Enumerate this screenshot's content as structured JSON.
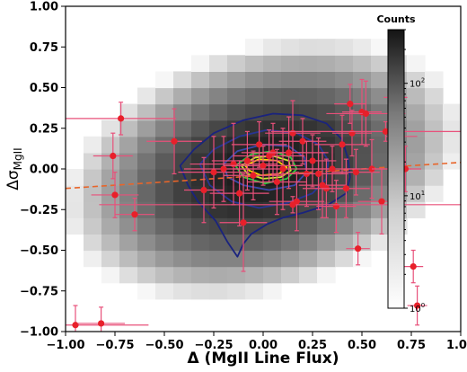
{
  "chart_data": {
    "type": "heatmap",
    "title": "",
    "xlabel_prefix": "Δ (",
    "xlabel_main": "MgII Line Flux",
    "xlabel_suffix": ")",
    "ylabel_main": "Δσ",
    "ylabel_sub": "MgII",
    "xlim": [
      -1.0,
      1.0
    ],
    "ylim": [
      -1.0,
      1.0
    ],
    "x_ticks": [
      "−1.00",
      "−0.75",
      "−0.50",
      "−0.25",
      "0.00",
      "0.25",
      "0.50",
      "0.75",
      "1.00"
    ],
    "y_ticks": [
      "1.00",
      "0.75",
      "0.50",
      "0.25",
      "0.00",
      "−0.25",
      "−0.50",
      "−0.75",
      "−1.00"
    ],
    "grid": false,
    "colorbar": {
      "title": "Counts",
      "scale": "log",
      "range": [
        1,
        300
      ],
      "ticks": [
        {
          "base": "10",
          "exp": "0"
        },
        {
          "base": "10",
          "exp": "1"
        },
        {
          "base": "10",
          "exp": "2"
        }
      ],
      "position": "inside-top-right"
    },
    "density": {
      "center": [
        0.0,
        0.0
      ],
      "sigma_x": 0.3,
      "sigma_y": 0.24,
      "rho": 0.28,
      "peak_counts": 260
    },
    "contours": [
      {
        "color": "#1a237e",
        "points": [
          [
            -0.42,
            0.02
          ],
          [
            -0.35,
            0.12
          ],
          [
            -0.25,
            0.22
          ],
          [
            -0.1,
            0.3
          ],
          [
            0.05,
            0.34
          ],
          [
            0.2,
            0.33
          ],
          [
            0.32,
            0.28
          ],
          [
            0.4,
            0.18
          ],
          [
            0.43,
            0.06
          ],
          [
            0.44,
            -0.05
          ],
          [
            0.42,
            -0.15
          ],
          [
            0.33,
            -0.22
          ],
          [
            0.2,
            -0.27
          ],
          [
            0.1,
            -0.3
          ],
          [
            0.02,
            -0.34
          ],
          [
            -0.06,
            -0.4
          ],
          [
            -0.1,
            -0.46
          ],
          [
            -0.13,
            -0.54
          ],
          [
            -0.18,
            -0.45
          ],
          [
            -0.24,
            -0.32
          ],
          [
            -0.33,
            -0.2
          ],
          [
            -0.38,
            -0.1
          ]
        ]
      },
      {
        "color": "#283593",
        "points": [
          [
            -0.32,
            0.03
          ],
          [
            -0.25,
            0.12
          ],
          [
            -0.12,
            0.2
          ],
          [
            0.02,
            0.24
          ],
          [
            0.17,
            0.22
          ],
          [
            0.28,
            0.15
          ],
          [
            0.33,
            0.05
          ],
          [
            0.32,
            -0.06
          ],
          [
            0.25,
            -0.15
          ],
          [
            0.12,
            -0.21
          ],
          [
            -0.02,
            -0.24
          ],
          [
            -0.16,
            -0.2
          ],
          [
            -0.27,
            -0.1
          ]
        ]
      },
      {
        "color": "#3949ab",
        "points": [
          [
            -0.2,
            0.03
          ],
          [
            -0.13,
            0.11
          ],
          [
            0.0,
            0.15
          ],
          [
            0.13,
            0.14
          ],
          [
            0.21,
            0.07
          ],
          [
            0.22,
            -0.02
          ],
          [
            0.16,
            -0.1
          ],
          [
            0.03,
            -0.13
          ],
          [
            -0.1,
            -0.1
          ],
          [
            -0.18,
            -0.05
          ]
        ]
      },
      {
        "color": "#2ecc40",
        "points": [
          [
            -0.14,
            0.02
          ],
          [
            -0.06,
            0.09
          ],
          [
            0.05,
            0.11
          ],
          [
            0.14,
            0.07
          ],
          [
            0.17,
            0.0
          ],
          [
            0.12,
            -0.06
          ],
          [
            0.01,
            -0.09
          ],
          [
            -0.1,
            -0.05
          ]
        ]
      },
      {
        "color": "#c8e632",
        "points": [
          [
            -0.11,
            0.02
          ],
          [
            -0.04,
            0.07
          ],
          [
            0.05,
            0.08
          ],
          [
            0.13,
            0.05
          ],
          [
            0.14,
            -0.01
          ],
          [
            0.09,
            -0.05
          ],
          [
            0.0,
            -0.06
          ],
          [
            -0.08,
            -0.03
          ]
        ]
      },
      {
        "color": "#ffd400",
        "points": [
          [
            -0.09,
            0.02
          ],
          [
            -0.02,
            0.06
          ],
          [
            0.07,
            0.05
          ],
          [
            0.12,
            0.01
          ],
          [
            0.08,
            -0.03
          ],
          [
            -0.01,
            -0.04
          ],
          [
            -0.07,
            -0.01
          ]
        ]
      }
    ],
    "fit_line": {
      "color": "#e8652a",
      "style": "dashed",
      "x": [
        -1.0,
        1.0
      ],
      "y": [
        -0.12,
        0.04
      ]
    },
    "scatter": {
      "color": "#e8202a",
      "error_color": "#e8507a",
      "points": [
        {
          "x": -0.95,
          "y": -0.96,
          "xerr": 0.37,
          "yerr": 0.12
        },
        {
          "x": -0.82,
          "y": -0.95,
          "xerr": 0.12,
          "yerr": 0.1
        },
        {
          "x": -0.72,
          "y": 0.31,
          "xerr": 0.28,
          "yerr": 0.1
        },
        {
          "x": -0.76,
          "y": 0.08,
          "xerr": 0.1,
          "yerr": 0.14
        },
        {
          "x": -0.75,
          "y": -0.16,
          "xerr": 0.12,
          "yerr": 0.14
        },
        {
          "x": -0.65,
          "y": -0.28,
          "xerr": 0.1,
          "yerr": 0.1
        },
        {
          "x": -0.45,
          "y": 0.17,
          "xerr": 0.14,
          "yerr": 0.2
        },
        {
          "x": -0.3,
          "y": -0.13,
          "xerr": 0.1,
          "yerr": 0.2
        },
        {
          "x": -0.25,
          "y": -0.02,
          "xerr": 0.18,
          "yerr": 0.22
        },
        {
          "x": -0.2,
          "y": 0.0,
          "xerr": 0.2,
          "yerr": 0.2
        },
        {
          "x": -0.15,
          "y": 0.03,
          "xerr": 0.22,
          "yerr": 0.25
        },
        {
          "x": -0.12,
          "y": -0.15,
          "xerr": 0.15,
          "yerr": 0.2
        },
        {
          "x": -0.1,
          "y": -0.33,
          "xerr": 0.12,
          "yerr": 0.3
        },
        {
          "x": -0.08,
          "y": 0.05,
          "xerr": 0.18,
          "yerr": 0.18
        },
        {
          "x": -0.05,
          "y": -0.04,
          "xerr": 0.15,
          "yerr": 0.15
        },
        {
          "x": -0.02,
          "y": 0.15,
          "xerr": 0.14,
          "yerr": 0.14
        },
        {
          "x": 0.0,
          "y": 0.02,
          "xerr": 0.2,
          "yerr": 0.12
        },
        {
          "x": 0.03,
          "y": 0.08,
          "xerr": 0.18,
          "yerr": 0.16
        },
        {
          "x": 0.05,
          "y": 0.1,
          "xerr": 0.16,
          "yerr": 0.18
        },
        {
          "x": 0.07,
          "y": -0.08,
          "xerr": 0.15,
          "yerr": 0.2
        },
        {
          "x": 0.1,
          "y": 0.0,
          "xerr": 0.25,
          "yerr": 0.25
        },
        {
          "x": 0.13,
          "y": 0.1,
          "xerr": 0.2,
          "yerr": 0.22
        },
        {
          "x": 0.15,
          "y": 0.22,
          "xerr": 0.14,
          "yerr": 0.2
        },
        {
          "x": 0.17,
          "y": -0.2,
          "xerr": 0.14,
          "yerr": 0.18
        },
        {
          "x": 0.2,
          "y": 0.17,
          "xerr": 0.12,
          "yerr": 0.14
        },
        {
          "x": 0.22,
          "y": -0.03,
          "xerr": 0.18,
          "yerr": 0.2
        },
        {
          "x": 0.25,
          "y": 0.05,
          "xerr": 0.12,
          "yerr": 0.16
        },
        {
          "x": 0.28,
          "y": -0.03,
          "xerr": 0.15,
          "yerr": 0.22
        },
        {
          "x": 0.3,
          "y": -0.1,
          "xerr": 0.12,
          "yerr": 0.2
        },
        {
          "x": 0.32,
          "y": -0.12,
          "xerr": 0.12,
          "yerr": 0.18
        },
        {
          "x": 0.35,
          "y": 0.0,
          "xerr": 0.14,
          "yerr": 0.14
        },
        {
          "x": 0.37,
          "y": -0.23,
          "xerr": 0.1,
          "yerr": 0.16
        },
        {
          "x": 0.4,
          "y": 0.15,
          "xerr": 0.14,
          "yerr": 0.18
        },
        {
          "x": 0.42,
          "y": -0.12,
          "xerr": 0.12,
          "yerr": 0.18
        },
        {
          "x": 0.44,
          "y": 0.4,
          "xerr": 0.08,
          "yerr": 0.12
        },
        {
          "x": 0.45,
          "y": 0.22,
          "xerr": 0.1,
          "yerr": 0.14
        },
        {
          "x": 0.47,
          "y": -0.02,
          "xerr": 0.12,
          "yerr": 0.14
        },
        {
          "x": 0.5,
          "y": 0.35,
          "xerr": 0.1,
          "yerr": 0.2
        },
        {
          "x": 0.52,
          "y": 0.34,
          "xerr": 0.2,
          "yerr": 0.2
        },
        {
          "x": 0.55,
          "y": 0.0,
          "xerr": 0.14,
          "yerr": 0.18
        },
        {
          "x": 0.48,
          "y": -0.49,
          "xerr": 0.06,
          "yerr": 0.1
        },
        {
          "x": 0.6,
          "y": -0.2,
          "xerr": 0.12,
          "yerr": 0.2
        },
        {
          "x": 0.65,
          "y": 0.0,
          "xerr": 0.1,
          "yerr": 0.12
        },
        {
          "x": 0.67,
          "y": 0.44,
          "xerr": 0.06,
          "yerr": 0.16
        },
        {
          "x": 0.7,
          "y": 0.2,
          "xerr": 0.08,
          "yerr": 0.14
        },
        {
          "x": 0.72,
          "y": 0.0,
          "xerr": 0.08,
          "yerr": 0.14
        },
        {
          "x": 0.76,
          "y": -0.6,
          "xerr": 0.05,
          "yerr": 0.1
        },
        {
          "x": 0.78,
          "y": -0.84,
          "xerr": 0.05,
          "yerr": 0.12
        },
        {
          "x": 0.62,
          "y": 0.23,
          "xerr": 0.58,
          "yerr": 0.06
        },
        {
          "x": 0.15,
          "y": -0.22,
          "xerr": 0.98,
          "yerr": 0.05
        }
      ]
    }
  }
}
